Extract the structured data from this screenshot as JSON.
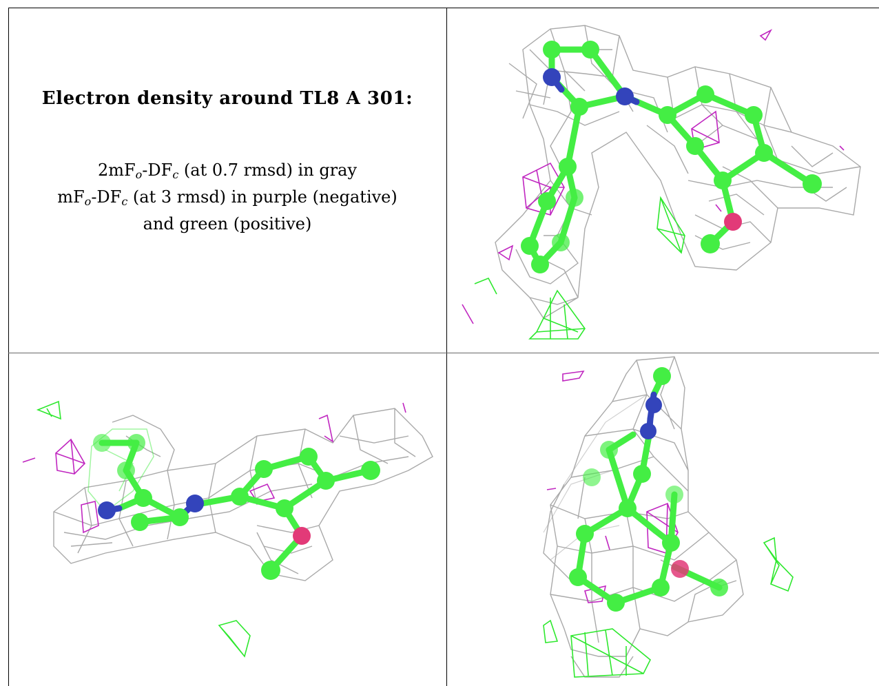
{
  "caption": {
    "title": "Electron density around TL8 A 301:",
    "line1": {
      "pre": "2mF",
      "sub1": "o",
      "mid": "-DF",
      "sub2": "c",
      "post": " (at 0.7 rmsd) in gray"
    },
    "line2": {
      "pre": "mF",
      "sub1": "o",
      "mid": "-DF",
      "sub2": "c",
      "post": " (at 3 rmsd) in purple (negative)"
    },
    "line3": "and green (positive)"
  },
  "colors": {
    "mesh_2fofc": "#a9a9a9",
    "mesh_negative": "#c026c0",
    "mesh_positive": "#2ee82e",
    "carbon": "#44ee44",
    "nitrogen": "#3344bb",
    "oxygen": "#e23a78",
    "border": "#000000"
  },
  "panels": [
    {
      "view": "view-1"
    },
    {
      "view": "view-2"
    },
    {
      "view": "view-3"
    }
  ]
}
